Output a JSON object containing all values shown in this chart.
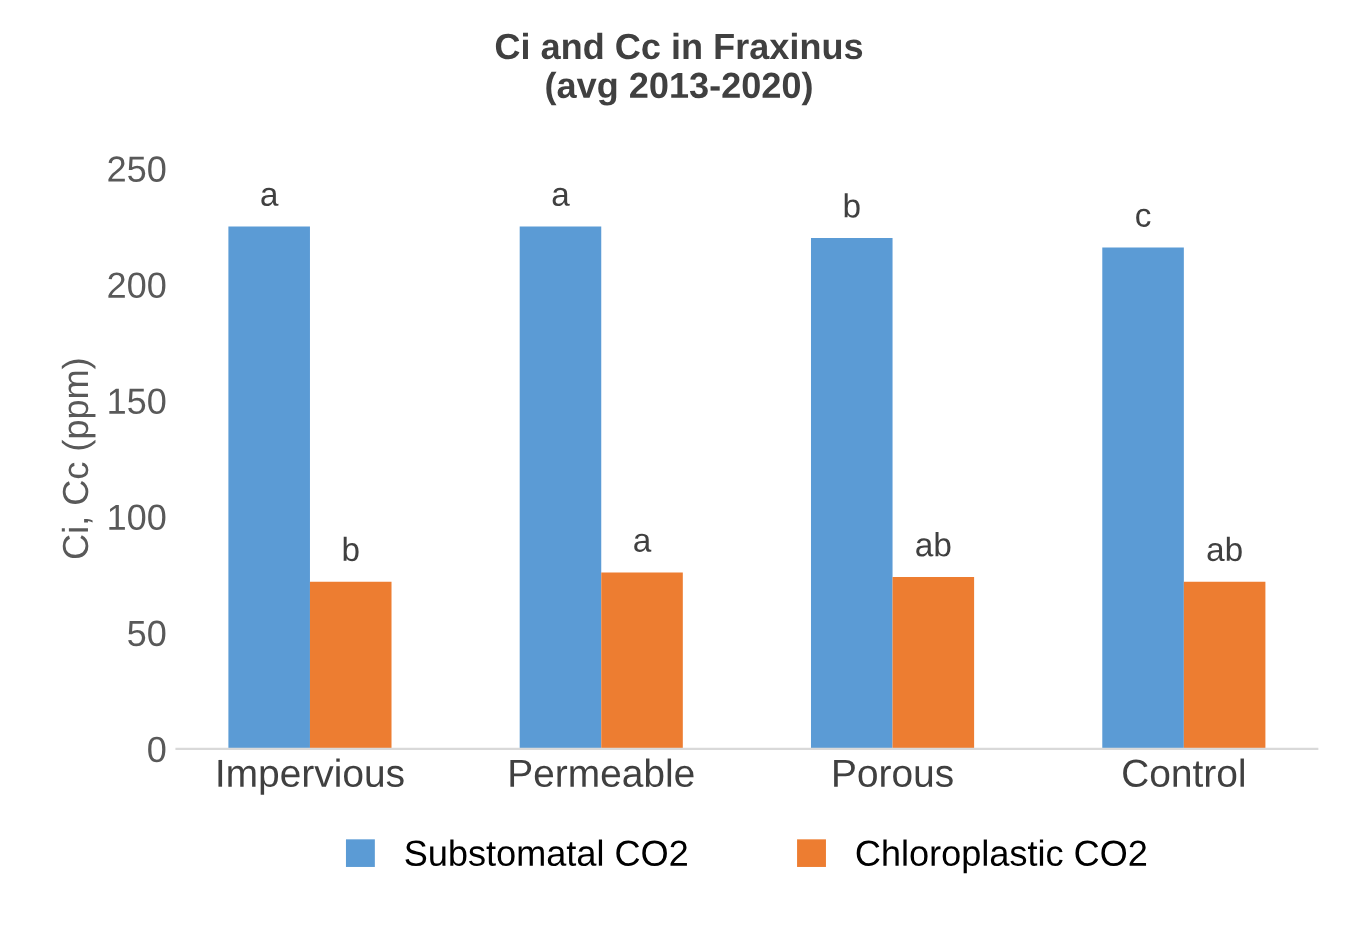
{
  "chart_data": {
    "type": "bar",
    "title": "Ci and Cc in Fraxinus\n(avg 2013-2020)",
    "ylabel": "Ci, Cc (ppm)",
    "categories": [
      "Impervious",
      "Permeable",
      "Porous",
      "Control"
    ],
    "series": [
      {
        "name": "Substomatal CO2",
        "color": "#5b9bd5",
        "values": [
          225,
          225,
          220,
          216
        ],
        "value_labels": [
          "a",
          "a",
          "b",
          "c"
        ]
      },
      {
        "name": "Chloroplastic CO2",
        "color": "#ed7d31",
        "values": [
          72,
          76,
          74,
          72
        ],
        "value_labels": [
          "b",
          "a",
          "ab",
          "ab"
        ]
      }
    ],
    "ylim": [
      0,
      250
    ],
    "yticks": [
      0,
      50,
      100,
      150,
      200,
      250
    ],
    "grid": false,
    "legend": "bottom"
  }
}
